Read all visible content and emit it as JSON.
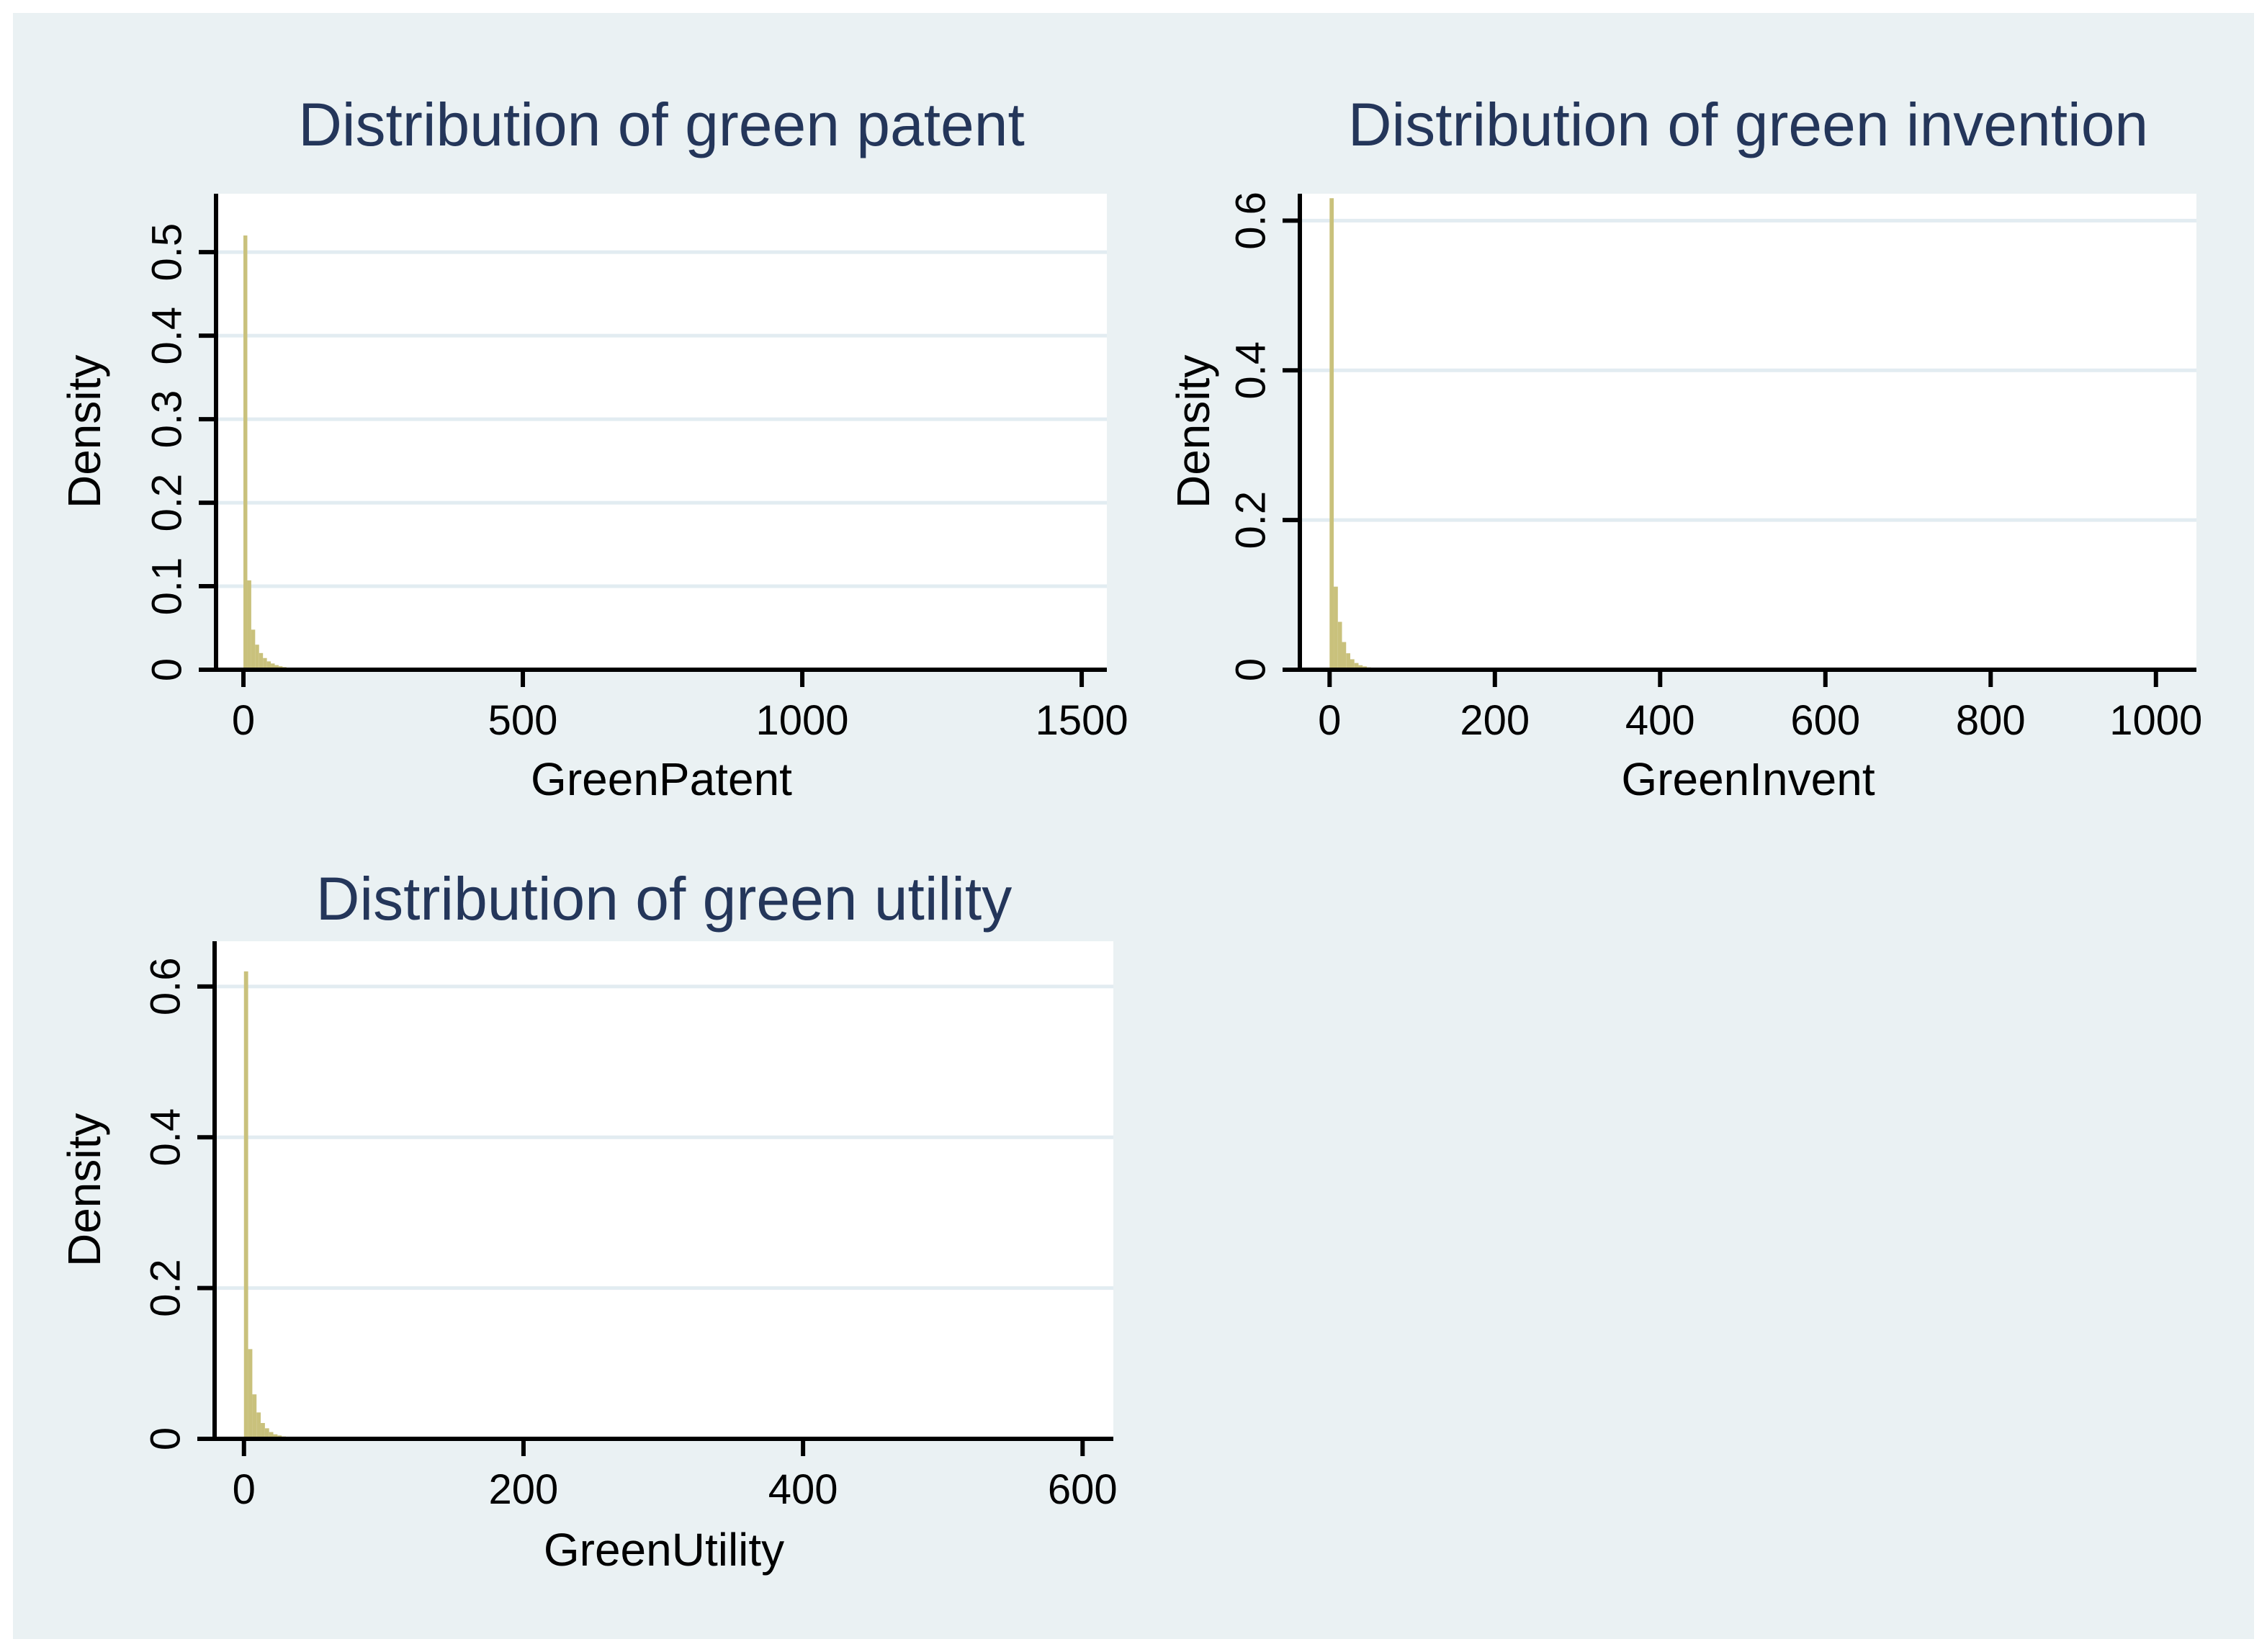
{
  "page": {
    "outer_background": "#FFFFFF",
    "canvas_background": "#EAF1F3",
    "plot_background": "#FFFFFF",
    "gridline_color": "#E2ECF1",
    "axis_color": "#000000",
    "bar_fill": "#C9C17C",
    "title_color": "#24365A",
    "text_color": "#000000"
  },
  "chart_data": [
    {
      "type": "bar",
      "subtype": "histogram-density",
      "title": "Distribution of green patent",
      "xlabel": "GreenPatent",
      "ylabel": "Density",
      "grid": true,
      "legend": "none",
      "xlim": [
        -49,
        1545
      ],
      "ylim": [
        0,
        0.57
      ],
      "x_ticks": [
        {
          "v": 0,
          "label": "0"
        },
        {
          "v": 500,
          "label": "500"
        },
        {
          "v": 1000,
          "label": "1000"
        },
        {
          "v": 1500,
          "label": "1500"
        }
      ],
      "y_ticks": [
        {
          "v": 0,
          "label": "0"
        },
        {
          "v": 0.1,
          "label": "0.1"
        },
        {
          "v": 0.2,
          "label": "0.2"
        },
        {
          "v": 0.3,
          "label": "0.3"
        },
        {
          "v": 0.4,
          "label": "0.4"
        },
        {
          "v": 0.5,
          "label": "0.5"
        }
      ],
      "bin_start": 0,
      "bin_width": 7,
      "densities": [
        0.52,
        0.107,
        0.048,
        0.03,
        0.02,
        0.014,
        0.01,
        0.0075,
        0.0055,
        0.0042,
        0.0032,
        0.0024,
        0.0018,
        0.0013
      ],
      "peak_density": 0.52
    },
    {
      "type": "bar",
      "subtype": "histogram-density",
      "title": "Distribution of green invention",
      "xlabel": "GreenInvent",
      "ylabel": "Density",
      "grid": true,
      "legend": "none",
      "xlim": [
        -36,
        1049
      ],
      "ylim": [
        0,
        0.636
      ],
      "x_ticks": [
        {
          "v": 0,
          "label": "0"
        },
        {
          "v": 200,
          "label": "200"
        },
        {
          "v": 400,
          "label": "400"
        },
        {
          "v": 600,
          "label": "600"
        },
        {
          "v": 800,
          "label": "800"
        },
        {
          "v": 1000,
          "label": "1000"
        }
      ],
      "y_ticks": [
        {
          "v": 0,
          "label": "0"
        },
        {
          "v": 0.2,
          "label": "0.2"
        },
        {
          "v": 0.4,
          "label": "0.4"
        },
        {
          "v": 0.6,
          "label": "0.6"
        }
      ],
      "bin_start": 0,
      "bin_width": 5,
      "densities": [
        0.63,
        0.111,
        0.064,
        0.037,
        0.022,
        0.014,
        0.009,
        0.006,
        0.0045,
        0.0032,
        0.0023,
        0.0016
      ],
      "peak_density": 0.63
    },
    {
      "type": "bar",
      "subtype": "histogram-density",
      "title": "Distribution of green utility",
      "xlabel": "GreenUtility",
      "ylabel": "Density",
      "grid": true,
      "legend": "none",
      "xlim": [
        -21,
        622
      ],
      "ylim": [
        0,
        0.66
      ],
      "x_ticks": [
        {
          "v": 0,
          "label": "0"
        },
        {
          "v": 200,
          "label": "200"
        },
        {
          "v": 400,
          "label": "400"
        },
        {
          "v": 600,
          "label": "600"
        }
      ],
      "y_ticks": [
        {
          "v": 0,
          "label": "0"
        },
        {
          "v": 0.2,
          "label": "0.2"
        },
        {
          "v": 0.4,
          "label": "0.4"
        },
        {
          "v": 0.6,
          "label": "0.6"
        }
      ],
      "bin_start": 0,
      "bin_width": 3,
      "densities": [
        0.62,
        0.119,
        0.059,
        0.035,
        0.021,
        0.014,
        0.009,
        0.006,
        0.0045,
        0.0032,
        0.0022,
        0.0016
      ],
      "peak_density": 0.62
    }
  ]
}
